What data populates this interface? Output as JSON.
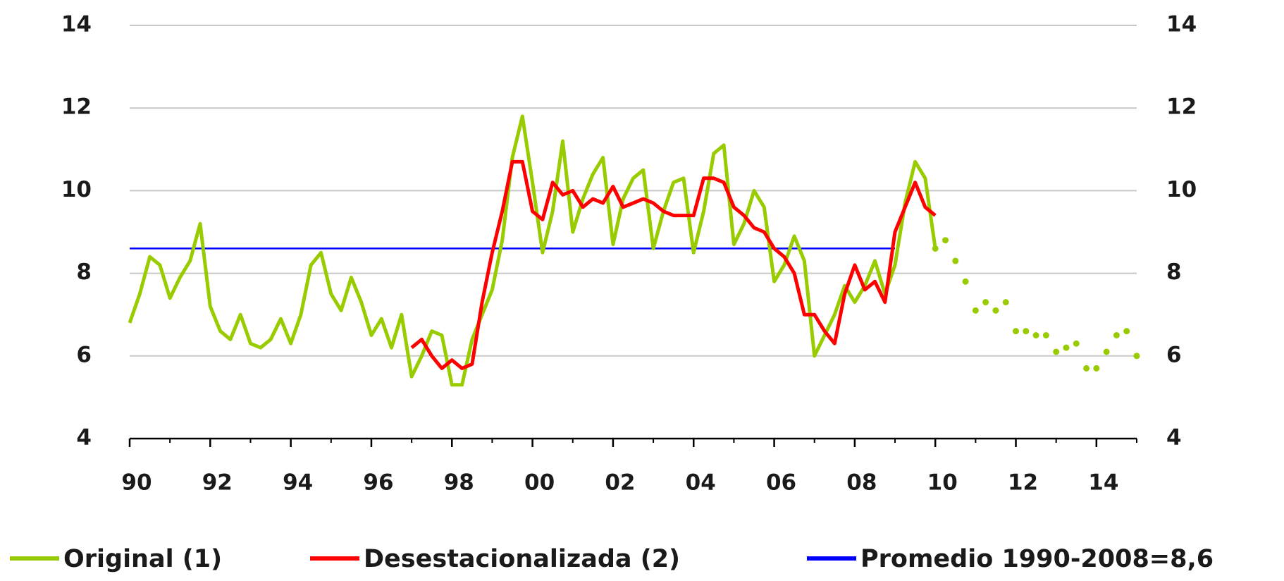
{
  "chart_data": {
    "type": "line",
    "xlim": [
      1990,
      2015
    ],
    "xticks": [
      {
        "value": 1990,
        "label": "90"
      },
      {
        "value": 1992,
        "label": "92"
      },
      {
        "value": 1994,
        "label": "94"
      },
      {
        "value": 1996,
        "label": "96"
      },
      {
        "value": 1998,
        "label": "98"
      },
      {
        "value": 2000,
        "label": "00"
      },
      {
        "value": 2002,
        "label": "02"
      },
      {
        "value": 2004,
        "label": "04"
      },
      {
        "value": 2006,
        "label": "06"
      },
      {
        "value": 2008,
        "label": "08"
      },
      {
        "value": 2010,
        "label": "10"
      },
      {
        "value": 2012,
        "label": "12"
      },
      {
        "value": 2014,
        "label": "14"
      }
    ],
    "ylim": [
      4,
      14
    ],
    "yticks": [
      4,
      6,
      8,
      10,
      12,
      14
    ],
    "y2lim": [
      4,
      14
    ],
    "y2ticks": [
      4,
      6,
      8,
      10,
      12,
      14
    ],
    "grid": true,
    "legend": "bottom",
    "series": [
      {
        "name": "Original (1)",
        "color": "#99cc00",
        "style": "solid",
        "x": [
          1990,
          1990.25,
          1990.5,
          1990.75,
          1991,
          1991.25,
          1991.5,
          1991.75,
          1992,
          1992.25,
          1992.5,
          1992.75,
          1993,
          1993.25,
          1993.5,
          1993.75,
          1994,
          1994.25,
          1994.5,
          1994.75,
          1995,
          1995.25,
          1995.5,
          1995.75,
          1996,
          1996.25,
          1996.5,
          1996.75,
          1997,
          1997.25,
          1997.5,
          1997.75,
          1998,
          1998.25,
          1998.5,
          1998.75,
          1999,
          1999.25,
          1999.5,
          1999.75,
          2000,
          2000.25,
          2000.5,
          2000.75,
          2001,
          2001.25,
          2001.5,
          2001.75,
          2002,
          2002.25,
          2002.5,
          2002.75,
          2003,
          2003.25,
          2003.5,
          2003.75,
          2004,
          2004.25,
          2004.5,
          2004.75,
          2005,
          2005.25,
          2005.5,
          2005.75,
          2006,
          2006.25,
          2006.5,
          2006.75,
          2007,
          2007.25,
          2007.5,
          2007.75,
          2008,
          2008.25,
          2008.5,
          2008.75,
          2009,
          2009.25,
          2009.5,
          2009.75,
          2010
        ],
        "values": [
          6.8,
          7.5,
          8.4,
          8.2,
          7.4,
          7.9,
          8.3,
          9.2,
          7.2,
          6.6,
          6.4,
          7.0,
          6.3,
          6.2,
          6.4,
          6.9,
          6.3,
          7.0,
          8.2,
          8.5,
          7.5,
          7.1,
          7.9,
          7.3,
          6.5,
          6.9,
          6.2,
          7.0,
          5.5,
          6.0,
          6.6,
          6.5,
          5.3,
          5.3,
          6.4,
          7.0,
          7.6,
          8.8,
          10.8,
          11.8,
          10.2,
          8.5,
          9.5,
          11.2,
          9.0,
          9.8,
          10.4,
          10.8,
          8.7,
          9.8,
          10.3,
          10.5,
          8.6,
          9.5,
          10.2,
          10.3,
          8.5,
          9.5,
          10.9,
          11.1,
          8.7,
          9.2,
          10.0,
          9.6,
          7.8,
          8.2,
          8.9,
          8.3,
          6.0,
          6.5,
          7.0,
          7.7,
          7.3,
          7.7,
          8.3,
          7.5,
          8.2,
          9.7,
          10.7,
          10.3,
          8.6
        ]
      },
      {
        "color": "#99cc00",
        "style": "dotted",
        "x": [
          2010,
          2010.25,
          2010.5,
          2010.75,
          2011,
          2011.25,
          2011.5,
          2011.75,
          2012,
          2012.25,
          2012.5,
          2012.75,
          2013,
          2013.25,
          2013.5,
          2013.75,
          2014,
          2014.25,
          2014.5,
          2014.75,
          2015
        ],
        "values": [
          8.6,
          8.8,
          8.3,
          7.8,
          7.1,
          7.3,
          7.1,
          7.3,
          6.6,
          6.6,
          6.5,
          6.5,
          6.1,
          6.2,
          6.3,
          5.7,
          5.7,
          6.1,
          6.5,
          6.6,
          6.0
        ]
      },
      {
        "name": "Desestacionalizada (2)",
        "color": "#ff0000",
        "style": "solid",
        "x": [
          1997,
          1997.25,
          1997.5,
          1997.75,
          1998,
          1998.25,
          1998.5,
          1998.75,
          1999,
          1999.25,
          1999.5,
          1999.75,
          2000,
          2000.25,
          2000.5,
          2000.75,
          2001,
          2001.25,
          2001.5,
          2001.75,
          2002,
          2002.25,
          2002.5,
          2002.75,
          2003,
          2003.25,
          2003.5,
          2003.75,
          2004,
          2004.25,
          2004.5,
          2004.75,
          2005,
          2005.25,
          2005.5,
          2005.75,
          2006,
          2006.25,
          2006.5,
          2006.75,
          2007,
          2007.25,
          2007.5,
          2007.75,
          2008,
          2008.25,
          2008.5,
          2008.75,
          2009,
          2009.25,
          2009.5,
          2009.75,
          2010
        ],
        "values": [
          6.2,
          6.4,
          6.0,
          5.7,
          5.9,
          5.7,
          5.8,
          7.3,
          8.5,
          9.5,
          10.7,
          10.7,
          9.5,
          9.3,
          10.2,
          9.9,
          10.0,
          9.6,
          9.8,
          9.7,
          10.1,
          9.6,
          9.7,
          9.8,
          9.7,
          9.5,
          9.4,
          9.4,
          9.4,
          10.3,
          10.3,
          10.2,
          9.6,
          9.4,
          9.1,
          9.0,
          8.6,
          8.4,
          8.0,
          7.0,
          7.0,
          6.6,
          6.3,
          7.5,
          8.2,
          7.6,
          7.8,
          7.3,
          9.0,
          9.6,
          10.2,
          9.6,
          9.4
        ]
      },
      {
        "name": "Promedio 1990-2008=8,6",
        "color": "#0000ff",
        "style": "solid",
        "x": [
          1990,
          2009
        ],
        "values": [
          8.6,
          8.6
        ]
      }
    ]
  }
}
